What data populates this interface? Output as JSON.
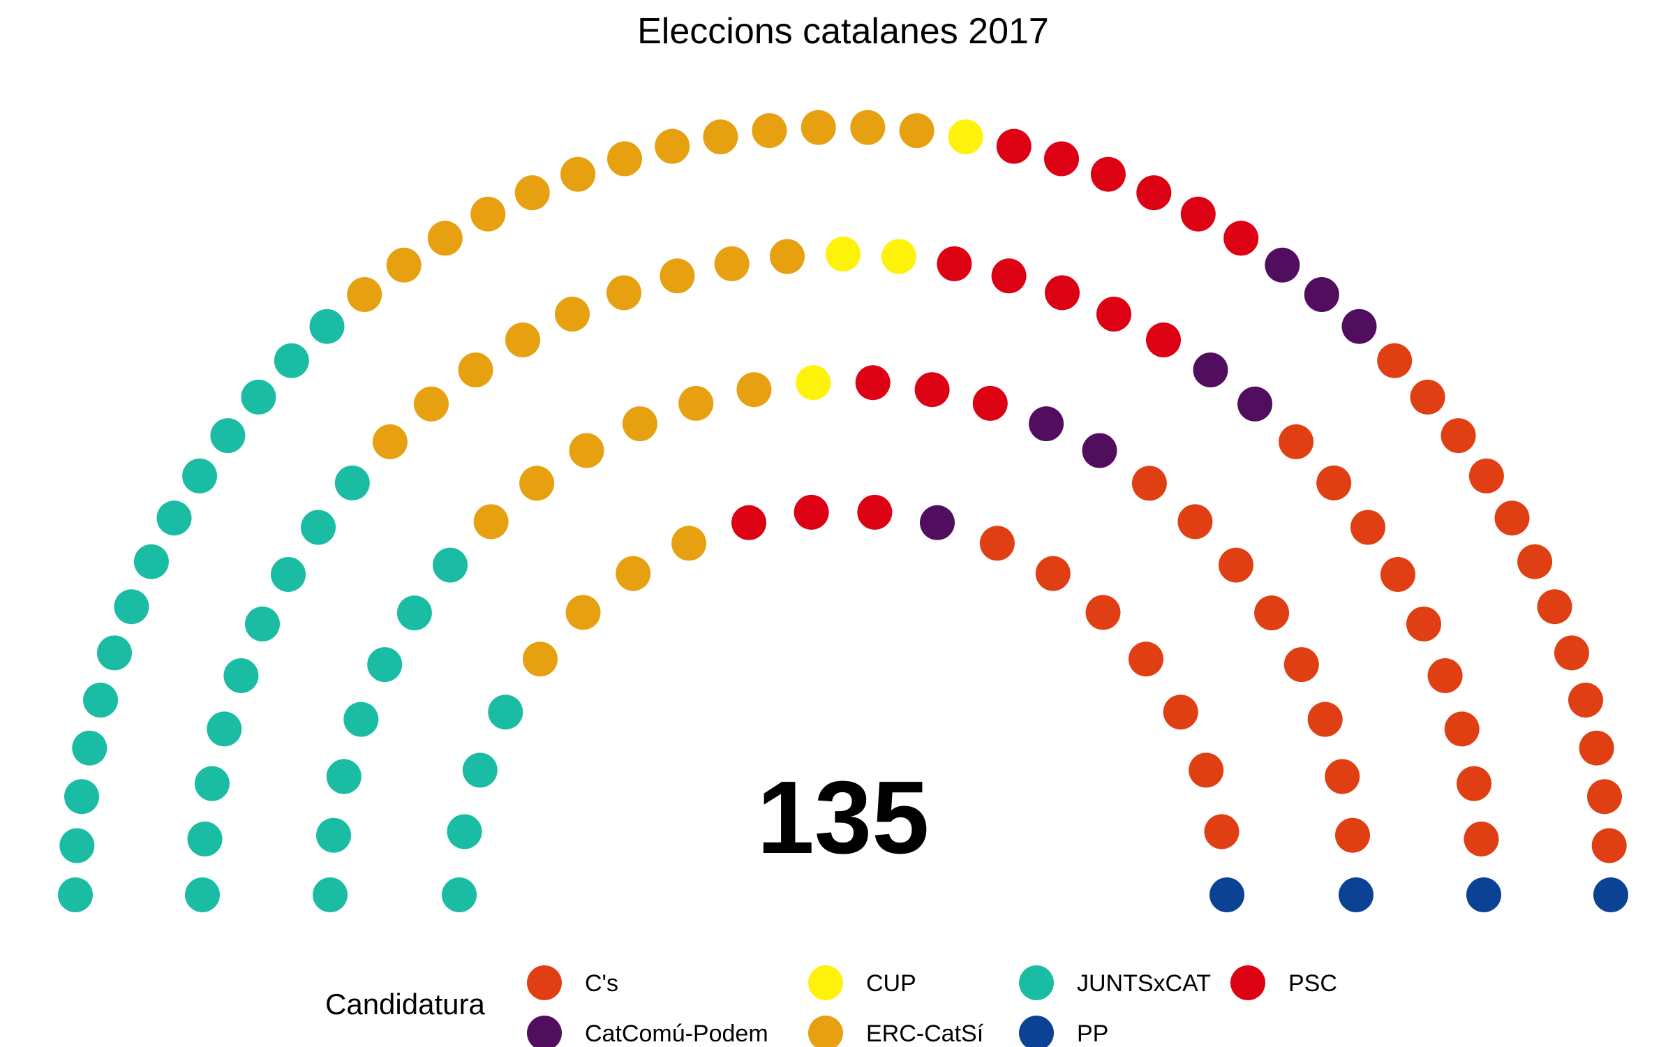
{
  "chart_data": {
    "type": "parliament",
    "title": "Eleccions catalanes 2017",
    "total_label": "135",
    "legend_title": "Candidatura",
    "parties": [
      {
        "name": "C's",
        "seats": 36,
        "color": "#E03F13"
      },
      {
        "name": "CatComú-Podem",
        "seats": 8,
        "color": "#520E5E"
      },
      {
        "name": "CUP",
        "seats": 4,
        "color": "#FEF20A"
      },
      {
        "name": "ERC-CatSí",
        "seats": 32,
        "color": "#E6A010"
      },
      {
        "name": "JUNTSxCAT",
        "seats": 34,
        "color": "#1BBCA4"
      },
      {
        "name": "PP",
        "seats": 4,
        "color": "#0C4293"
      },
      {
        "name": "PSC",
        "seats": 17,
        "color": "#DD0114"
      }
    ],
    "rows": [
      {
        "JUNTSxCAT": 14,
        "ERC-CatSí": 13,
        "CUP": 1,
        "PSC": 6,
        "CatComú-Podem": 3,
        "C's": 12,
        "PP": 1
      },
      {
        "JUNTSxCAT": 9,
        "ERC-CatSí": 9,
        "CUP": 2,
        "PSC": 5,
        "CatComú-Podem": 2,
        "C's": 9,
        "PP": 1
      },
      {
        "JUNTSxCAT": 7,
        "ERC-CatSí": 6,
        "CUP": 1,
        "PSC": 3,
        "CatComú-Podem": 2,
        "C's": 8,
        "PP": 1
      },
      {
        "JUNTSxCAT": 4,
        "ERC-CatSí": 4,
        "CUP": 0,
        "PSC": 3,
        "CatComú-Podem": 1,
        "C's": 7,
        "PP": 1
      }
    ],
    "seat_order": [
      "JUNTSxCAT",
      "ERC-CatSí",
      "CUP",
      "PSC",
      "CatComú-Podem",
      "C's",
      "PP"
    ],
    "legend_order": [
      "C's",
      "CatComú-Podem",
      "CUP",
      "ERC-CatSí",
      "JUNTSxCAT",
      "PP",
      "PSC"
    ]
  }
}
